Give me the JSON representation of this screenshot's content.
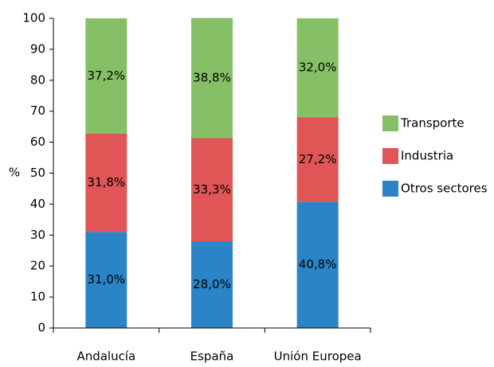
{
  "chart_data": {
    "type": "stacked_bar",
    "categories": [
      "Andalucía",
      "España",
      "Unión Europea"
    ],
    "y_label": "%",
    "ylim": [
      0,
      100
    ],
    "yticks": [
      0,
      10,
      20,
      30,
      40,
      50,
      60,
      70,
      80,
      90,
      100
    ],
    "legend": "right",
    "series": [
      {
        "name": "Otros sectores",
        "color": "#2a84c6",
        "values": [
          31.0,
          28.0,
          40.8
        ],
        "value_labels": [
          "31,0%",
          "28,0%",
          "40,8%"
        ]
      },
      {
        "name": "Industria",
        "color": "#e05555",
        "values": [
          31.8,
          33.3,
          27.2
        ],
        "value_labels": [
          "31,8%",
          "33,3%",
          "27,2%"
        ]
      },
      {
        "name": "Transporte",
        "color": "#86c066",
        "values": [
          37.2,
          38.8,
          32.0
        ],
        "value_labels": [
          "37,2%",
          "38,8%",
          "32,0%"
        ]
      }
    ]
  }
}
